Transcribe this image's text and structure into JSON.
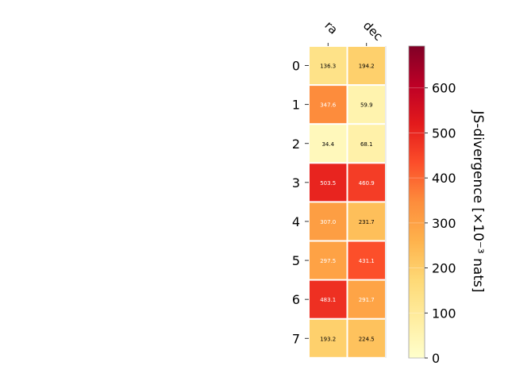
{
  "chart_data": {
    "type": "heatmap",
    "columns": [
      "ra",
      "dec"
    ],
    "rows": [
      "0",
      "1",
      "2",
      "3",
      "4",
      "5",
      "6",
      "7"
    ],
    "values": [
      [
        136.3,
        194.2
      ],
      [
        347.6,
        59.9
      ],
      [
        34.4,
        68.1
      ],
      [
        503.5,
        460.9
      ],
      [
        307.0,
        231.7
      ],
      [
        297.5,
        431.1
      ],
      [
        483.1,
        291.7
      ],
      [
        193.2,
        224.5
      ]
    ],
    "value_labels": [
      [
        "136.3",
        "194.2"
      ],
      [
        "347.6",
        "59.9"
      ],
      [
        "34.4",
        "68.1"
      ],
      [
        "503.5",
        "460.9"
      ],
      [
        "307.0",
        "231.7"
      ],
      [
        "297.5",
        "431.1"
      ],
      [
        "483.1",
        "291.7"
      ],
      [
        "193.2",
        "224.5"
      ]
    ],
    "colormap": "YlOrRd",
    "colorbar": {
      "label": "JS-divergence [×10⁻³ nats]",
      "range": [
        0,
        693
      ],
      "ticks": [
        0,
        100,
        200,
        300,
        400,
        500,
        600
      ]
    }
  }
}
